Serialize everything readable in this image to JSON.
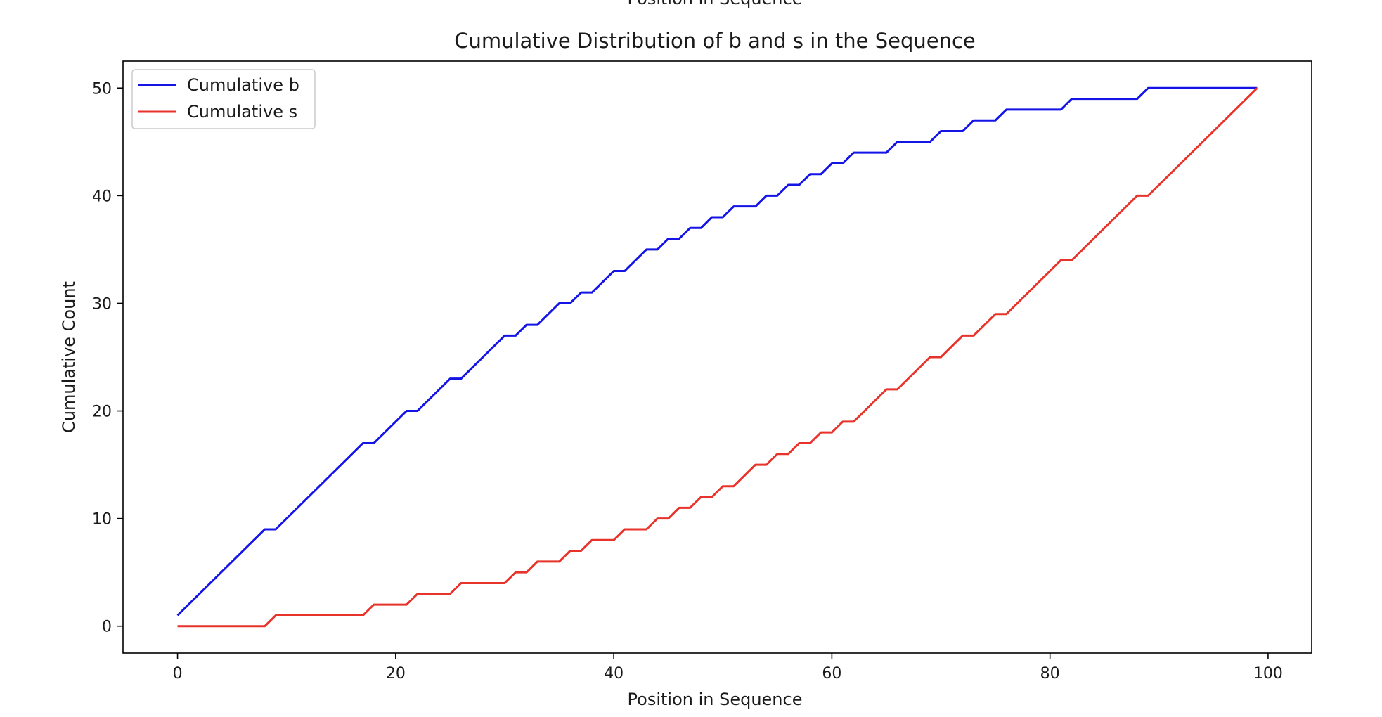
{
  "chart_data": {
    "type": "line",
    "title": "Cumulative Distribution of b and s in the Sequence",
    "top_label": "Position in Sequence",
    "xlabel": "Position in Sequence",
    "ylabel": "Cumulative Count",
    "xlim": [
      -5,
      104
    ],
    "ylim": [
      -2.5,
      52.5
    ],
    "xticks": [
      0,
      20,
      40,
      60,
      80,
      100
    ],
    "yticks": [
      0,
      10,
      20,
      30,
      40,
      50
    ],
    "grid": false,
    "legend_position": "top-left",
    "series": [
      {
        "name": "Cumulative b",
        "color": "#1414e6",
        "points": [
          [
            0,
            1
          ],
          [
            8,
            9
          ],
          [
            9,
            9
          ],
          [
            17,
            17
          ],
          [
            18,
            17
          ],
          [
            21,
            20
          ],
          [
            22,
            20
          ],
          [
            25,
            23
          ],
          [
            26,
            23
          ],
          [
            30,
            27
          ],
          [
            31,
            27
          ],
          [
            32,
            28
          ],
          [
            33,
            28
          ],
          [
            35,
            30
          ],
          [
            36,
            30
          ],
          [
            37,
            31
          ],
          [
            38,
            31
          ],
          [
            40,
            33
          ],
          [
            41,
            33
          ],
          [
            43,
            35
          ],
          [
            44,
            35
          ],
          [
            45,
            36
          ],
          [
            46,
            36
          ],
          [
            47,
            37
          ],
          [
            48,
            37
          ],
          [
            49,
            38
          ],
          [
            50,
            38
          ],
          [
            51,
            39
          ],
          [
            53,
            39
          ],
          [
            54,
            40
          ],
          [
            55,
            40
          ],
          [
            56,
            41
          ],
          [
            57,
            41
          ],
          [
            58,
            42
          ],
          [
            59,
            42
          ],
          [
            60,
            43
          ],
          [
            61,
            43
          ],
          [
            62,
            44
          ],
          [
            65,
            44
          ],
          [
            66,
            45
          ],
          [
            69,
            45
          ],
          [
            70,
            46
          ],
          [
            72,
            46
          ],
          [
            73,
            47
          ],
          [
            75,
            47
          ],
          [
            76,
            48
          ],
          [
            81,
            48
          ],
          [
            82,
            49
          ],
          [
            88,
            49
          ],
          [
            89,
            50
          ],
          [
            99,
            50
          ]
        ]
      },
      {
        "name": "Cumulative s",
        "color": "#e8332b",
        "points": [
          [
            0,
            0
          ],
          [
            8,
            0
          ],
          [
            9,
            1
          ],
          [
            17,
            1
          ],
          [
            18,
            2
          ],
          [
            21,
            2
          ],
          [
            22,
            3
          ],
          [
            25,
            3
          ],
          [
            26,
            4
          ],
          [
            30,
            4
          ],
          [
            31,
            5
          ],
          [
            32,
            5
          ],
          [
            33,
            6
          ],
          [
            35,
            6
          ],
          [
            36,
            7
          ],
          [
            37,
            7
          ],
          [
            38,
            8
          ],
          [
            40,
            8
          ],
          [
            41,
            9
          ],
          [
            43,
            9
          ],
          [
            44,
            10
          ],
          [
            45,
            10
          ],
          [
            46,
            11
          ],
          [
            47,
            11
          ],
          [
            48,
            12
          ],
          [
            49,
            12
          ],
          [
            50,
            13
          ],
          [
            51,
            13
          ],
          [
            53,
            15
          ],
          [
            54,
            15
          ],
          [
            55,
            16
          ],
          [
            56,
            16
          ],
          [
            57,
            17
          ],
          [
            58,
            17
          ],
          [
            59,
            18
          ],
          [
            60,
            18
          ],
          [
            61,
            19
          ],
          [
            62,
            19
          ],
          [
            65,
            22
          ],
          [
            66,
            22
          ],
          [
            69,
            25
          ],
          [
            70,
            25
          ],
          [
            72,
            27
          ],
          [
            73,
            27
          ],
          [
            75,
            29
          ],
          [
            76,
            29
          ],
          [
            81,
            34
          ],
          [
            82,
            34
          ],
          [
            88,
            40
          ],
          [
            89,
            40
          ],
          [
            99,
            50
          ]
        ]
      }
    ]
  }
}
